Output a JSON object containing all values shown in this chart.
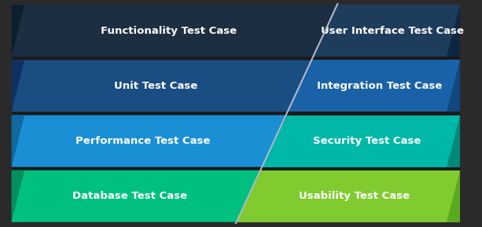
{
  "fig_bg": "#2a2a2a",
  "rows": [
    {
      "left_label": "Functionality Test Case",
      "right_label": "User Interface Test Case",
      "left_color": "#1c2e42",
      "right_color": "#1e3d5c",
      "left_accent": "#0d1e2e",
      "right_accent": "#0f2540"
    },
    {
      "left_label": "Unit Test Case",
      "right_label": "Integration Test Case",
      "left_color": "#1a4e82",
      "right_color": "#1a62a8",
      "left_accent": "#0f3060",
      "right_accent": "#124880"
    },
    {
      "left_label": "Performance Test Case",
      "right_label": "Security Test Case",
      "left_color": "#1a8fd4",
      "right_color": "#00b8a8",
      "left_accent": "#1268a0",
      "right_accent": "#008878"
    },
    {
      "left_label": "Database Test Case",
      "right_label": "Usability Test Case",
      "left_color": "#00c080",
      "right_color": "#80cc30",
      "left_accent": "#009060",
      "right_accent": "#5aaa20"
    }
  ],
  "text_color": "#ffffff",
  "font_size": 9.5,
  "font_weight": "bold",
  "diagonal_color": "#b0b8cc",
  "diagonal_linewidth": 1.5
}
